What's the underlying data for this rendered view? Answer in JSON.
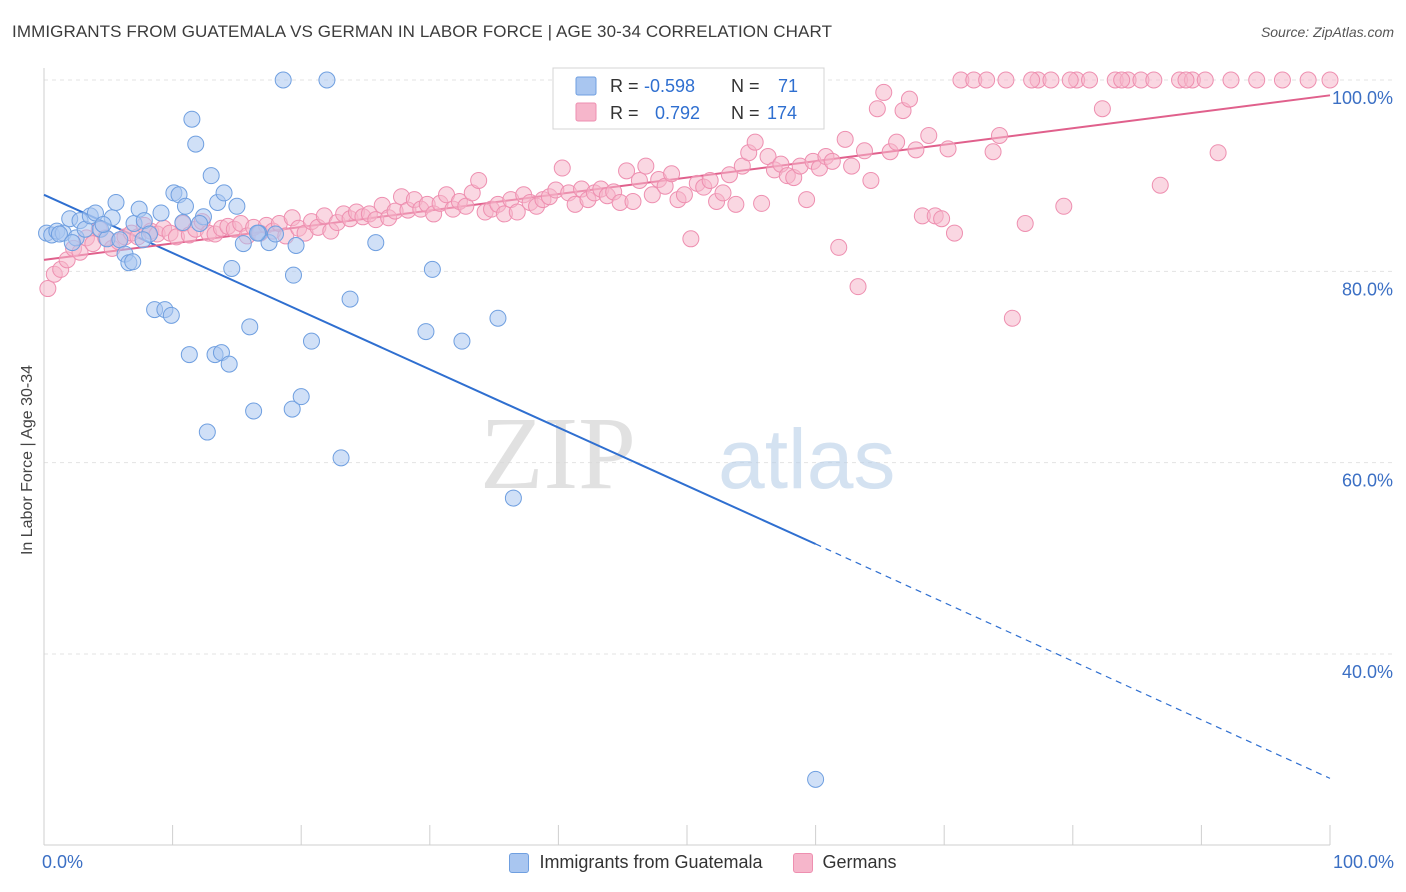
{
  "title": "IMMIGRANTS FROM GUATEMALA VS GERMAN IN LABOR FORCE | AGE 30-34 CORRELATION CHART",
  "source": "Source: ZipAtlas.com",
  "watermark": {
    "zip": "ZIP",
    "atlas": "atlas"
  },
  "colors": {
    "blue_fill": "#a9c6f0",
    "blue_stroke": "#6f9fe0",
    "blue_line": "#2f6fd0",
    "pink_fill": "#f6b6cb",
    "pink_stroke": "#ee8fb0",
    "pink_line": "#e0608c",
    "axis_label": "#3b6fc4"
  },
  "legend": {
    "rows": [
      {
        "r_label": "R =",
        "r_value": "-0.598",
        "n_label": "N =",
        "n_value": "71"
      },
      {
        "r_label": "R =",
        "r_value": "0.792",
        "n_label": "N =",
        "n_value": "174"
      }
    ]
  },
  "chart_data": {
    "type": "scatter",
    "title": "IMMIGRANTS FROM GUATEMALA VS GERMAN IN LABOR FORCE | AGE 30-34 CORRELATION CHART",
    "xlabel": "",
    "ylabel": "In Labor Force | Age 30-34",
    "xlim": [
      0,
      100
    ],
    "ylim": [
      20,
      102
    ],
    "x_tick_labels": [
      "0.0%",
      "100.0%"
    ],
    "y_ticks": [
      40,
      60,
      80,
      100
    ],
    "y_tick_labels": [
      "40.0%",
      "60.0%",
      "80.0%",
      "100.0%"
    ],
    "grid": true,
    "legend_position": "top-center",
    "series": [
      {
        "name": "Immigrants from Guatemala",
        "r": -0.598,
        "n": 71,
        "trend": {
          "x0": 0,
          "y0": 88.0,
          "x1": 60,
          "y1": 51.5,
          "dash_to_x": 100,
          "dash_to_y": 27.0
        },
        "points": [
          [
            0.2,
            84.0
          ],
          [
            0.6,
            83.8
          ],
          [
            1.0,
            84.2
          ],
          [
            1.5,
            84.0
          ],
          [
            2.0,
            85.5
          ],
          [
            2.5,
            83.5
          ],
          [
            2.8,
            85.3
          ],
          [
            3.2,
            84.4
          ],
          [
            3.6,
            85.8
          ],
          [
            4.0,
            86.1
          ],
          [
            4.4,
            84.4
          ],
          [
            4.9,
            83.4
          ],
          [
            5.3,
            85.6
          ],
          [
            5.6,
            87.2
          ],
          [
            5.9,
            83.3
          ],
          [
            6.3,
            81.8
          ],
          [
            6.6,
            80.9
          ],
          [
            7.0,
            85.0
          ],
          [
            7.4,
            86.5
          ],
          [
            7.8,
            85.3
          ],
          [
            8.2,
            83.9
          ],
          [
            9.1,
            86.1
          ],
          [
            8.6,
            76.0
          ],
          [
            9.4,
            76.0
          ],
          [
            9.9,
            75.4
          ],
          [
            10.1,
            88.2
          ],
          [
            10.5,
            88.0
          ],
          [
            11.0,
            86.8
          ],
          [
            11.3,
            71.3
          ],
          [
            11.5,
            95.9
          ],
          [
            11.8,
            93.3
          ],
          [
            12.4,
            85.7
          ],
          [
            12.7,
            63.2
          ],
          [
            13.0,
            90.0
          ],
          [
            13.3,
            71.3
          ],
          [
            13.5,
            87.2
          ],
          [
            13.8,
            71.5
          ],
          [
            14.0,
            88.2
          ],
          [
            14.4,
            70.3
          ],
          [
            14.6,
            80.3
          ],
          [
            15.0,
            86.8
          ],
          [
            15.5,
            82.9
          ],
          [
            16.0,
            74.2
          ],
          [
            16.3,
            65.4
          ],
          [
            16.7,
            84.0
          ],
          [
            17.5,
            83.0
          ],
          [
            18.6,
            100.0
          ],
          [
            19.3,
            65.6
          ],
          [
            19.4,
            79.6
          ],
          [
            19.6,
            82.7
          ],
          [
            20.0,
            66.9
          ],
          [
            20.8,
            72.7
          ],
          [
            22.0,
            100.0
          ],
          [
            23.1,
            60.5
          ],
          [
            23.8,
            77.1
          ],
          [
            25.8,
            83.0
          ],
          [
            29.7,
            73.7
          ],
          [
            30.2,
            80.2
          ],
          [
            32.5,
            72.7
          ],
          [
            35.3,
            75.1
          ],
          [
            36.5,
            56.3
          ],
          [
            60.0,
            26.9
          ],
          [
            18.0,
            83.9
          ],
          [
            12.1,
            85.0
          ],
          [
            6.9,
            81.0
          ],
          [
            1.2,
            83.9
          ],
          [
            2.2,
            83.0
          ],
          [
            4.6,
            84.9
          ],
          [
            7.7,
            83.3
          ],
          [
            16.6,
            84.0
          ],
          [
            10.8,
            85.1
          ]
        ]
      },
      {
        "name": "Germans",
        "r": 0.792,
        "n": 174,
        "trend": {
          "x0": 0,
          "y0": 81.2,
          "x1": 100,
          "y1": 98.4
        },
        "points": [
          [
            0.3,
            78.2
          ],
          [
            0.8,
            79.7
          ],
          [
            1.3,
            80.2
          ],
          [
            1.8,
            81.2
          ],
          [
            2.3,
            82.4
          ],
          [
            2.8,
            82.0
          ],
          [
            3.3,
            83.5
          ],
          [
            3.8,
            82.9
          ],
          [
            4.3,
            84.4
          ],
          [
            4.8,
            83.5
          ],
          [
            5.3,
            82.4
          ],
          [
            5.8,
            83.1
          ],
          [
            6.3,
            83.6
          ],
          [
            6.8,
            84.0
          ],
          [
            7.3,
            83.6
          ],
          [
            7.8,
            84.8
          ],
          [
            8.3,
            84.2
          ],
          [
            8.8,
            83.9
          ],
          [
            9.3,
            84.5
          ],
          [
            9.8,
            84.0
          ],
          [
            10.3,
            83.6
          ],
          [
            10.8,
            85.0
          ],
          [
            11.3,
            83.8
          ],
          [
            11.8,
            84.4
          ],
          [
            12.3,
            85.2
          ],
          [
            12.8,
            84.0
          ],
          [
            13.3,
            83.9
          ],
          [
            13.8,
            84.5
          ],
          [
            14.3,
            84.7
          ],
          [
            14.8,
            84.4
          ],
          [
            15.3,
            85.0
          ],
          [
            15.8,
            83.7
          ],
          [
            16.3,
            84.6
          ],
          [
            16.8,
            84.0
          ],
          [
            17.3,
            84.8
          ],
          [
            17.8,
            84.2
          ],
          [
            18.3,
            85.0
          ],
          [
            18.8,
            83.7
          ],
          [
            19.3,
            85.6
          ],
          [
            19.8,
            84.5
          ],
          [
            20.3,
            84.0
          ],
          [
            20.8,
            85.2
          ],
          [
            21.3,
            84.6
          ],
          [
            21.8,
            85.8
          ],
          [
            22.3,
            84.2
          ],
          [
            22.8,
            85.1
          ],
          [
            23.3,
            86.0
          ],
          [
            23.8,
            85.5
          ],
          [
            24.3,
            86.2
          ],
          [
            24.8,
            85.7
          ],
          [
            25.3,
            86.0
          ],
          [
            25.8,
            85.4
          ],
          [
            26.3,
            86.9
          ],
          [
            26.8,
            85.6
          ],
          [
            27.3,
            86.3
          ],
          [
            27.8,
            87.8
          ],
          [
            28.3,
            86.4
          ],
          [
            28.8,
            87.5
          ],
          [
            29.3,
            86.5
          ],
          [
            29.8,
            87.0
          ],
          [
            30.3,
            86.0
          ],
          [
            30.8,
            87.1
          ],
          [
            31.3,
            88.0
          ],
          [
            31.8,
            86.5
          ],
          [
            32.3,
            87.3
          ],
          [
            32.8,
            86.8
          ],
          [
            33.3,
            88.2
          ],
          [
            33.8,
            89.5
          ],
          [
            34.3,
            86.2
          ],
          [
            34.8,
            86.5
          ],
          [
            35.3,
            87.0
          ],
          [
            35.8,
            86.0
          ],
          [
            36.3,
            87.5
          ],
          [
            36.8,
            86.2
          ],
          [
            37.3,
            88.0
          ],
          [
            37.8,
            87.2
          ],
          [
            38.3,
            86.8
          ],
          [
            38.8,
            87.5
          ],
          [
            39.3,
            87.8
          ],
          [
            39.8,
            88.5
          ],
          [
            40.3,
            90.8
          ],
          [
            40.8,
            88.2
          ],
          [
            41.3,
            87.0
          ],
          [
            41.8,
            88.6
          ],
          [
            42.3,
            87.5
          ],
          [
            42.8,
            88.2
          ],
          [
            43.3,
            88.6
          ],
          [
            43.8,
            87.9
          ],
          [
            44.3,
            88.3
          ],
          [
            44.8,
            87.2
          ],
          [
            45.3,
            90.5
          ],
          [
            45.8,
            87.3
          ],
          [
            46.3,
            89.5
          ],
          [
            46.8,
            91.0
          ],
          [
            47.3,
            88.0
          ],
          [
            47.8,
            89.6
          ],
          [
            48.3,
            88.9
          ],
          [
            48.8,
            90.2
          ],
          [
            49.3,
            87.5
          ],
          [
            49.8,
            88.0
          ],
          [
            50.3,
            83.4
          ],
          [
            50.8,
            89.2
          ],
          [
            51.3,
            88.8
          ],
          [
            51.8,
            89.5
          ],
          [
            52.3,
            87.3
          ],
          [
            52.8,
            88.2
          ],
          [
            53.3,
            90.1
          ],
          [
            53.8,
            87.0
          ],
          [
            54.3,
            91.0
          ],
          [
            54.8,
            92.4
          ],
          [
            55.3,
            93.5
          ],
          [
            55.8,
            87.1
          ],
          [
            56.3,
            92.0
          ],
          [
            56.8,
            90.6
          ],
          [
            57.3,
            91.2
          ],
          [
            57.8,
            90.0
          ],
          [
            58.3,
            89.8
          ],
          [
            58.8,
            91.0
          ],
          [
            59.3,
            87.5
          ],
          [
            59.8,
            91.5
          ],
          [
            60.3,
            90.8
          ],
          [
            60.8,
            92.0
          ],
          [
            61.3,
            91.5
          ],
          [
            61.8,
            82.5
          ],
          [
            62.3,
            93.8
          ],
          [
            62.8,
            91.0
          ],
          [
            63.3,
            78.4
          ],
          [
            63.8,
            92.6
          ],
          [
            64.3,
            89.5
          ],
          [
            64.8,
            97.0
          ],
          [
            65.3,
            98.7
          ],
          [
            65.8,
            92.5
          ],
          [
            66.3,
            93.5
          ],
          [
            66.8,
            96.8
          ],
          [
            67.3,
            98.0
          ],
          [
            67.8,
            92.7
          ],
          [
            68.3,
            85.8
          ],
          [
            68.8,
            94.2
          ],
          [
            69.3,
            85.8
          ],
          [
            69.8,
            85.5
          ],
          [
            70.3,
            92.8
          ],
          [
            70.8,
            84.0
          ],
          [
            71.3,
            100.0
          ],
          [
            72.3,
            100.0
          ],
          [
            73.3,
            100.0
          ],
          [
            73.8,
            92.5
          ],
          [
            74.3,
            94.2
          ],
          [
            75.3,
            75.1
          ],
          [
            76.3,
            85.0
          ],
          [
            77.3,
            100.0
          ],
          [
            78.3,
            100.0
          ],
          [
            79.3,
            86.8
          ],
          [
            80.3,
            100.0
          ],
          [
            81.3,
            100.0
          ],
          [
            82.3,
            97.0
          ],
          [
            83.3,
            100.0
          ],
          [
            84.3,
            100.0
          ],
          [
            85.3,
            100.0
          ],
          [
            86.3,
            100.0
          ],
          [
            86.8,
            89.0
          ],
          [
            88.3,
            100.0
          ],
          [
            89.3,
            100.0
          ],
          [
            90.3,
            100.0
          ],
          [
            91.3,
            92.4
          ],
          [
            92.3,
            100.0
          ],
          [
            94.3,
            100.0
          ],
          [
            96.3,
            100.0
          ],
          [
            98.3,
            100.0
          ],
          [
            100.0,
            100.0
          ],
          [
            74.8,
            100.0
          ],
          [
            76.8,
            100.0
          ],
          [
            79.8,
            100.0
          ],
          [
            83.8,
            100.0
          ],
          [
            88.8,
            100.0
          ]
        ]
      }
    ]
  }
}
